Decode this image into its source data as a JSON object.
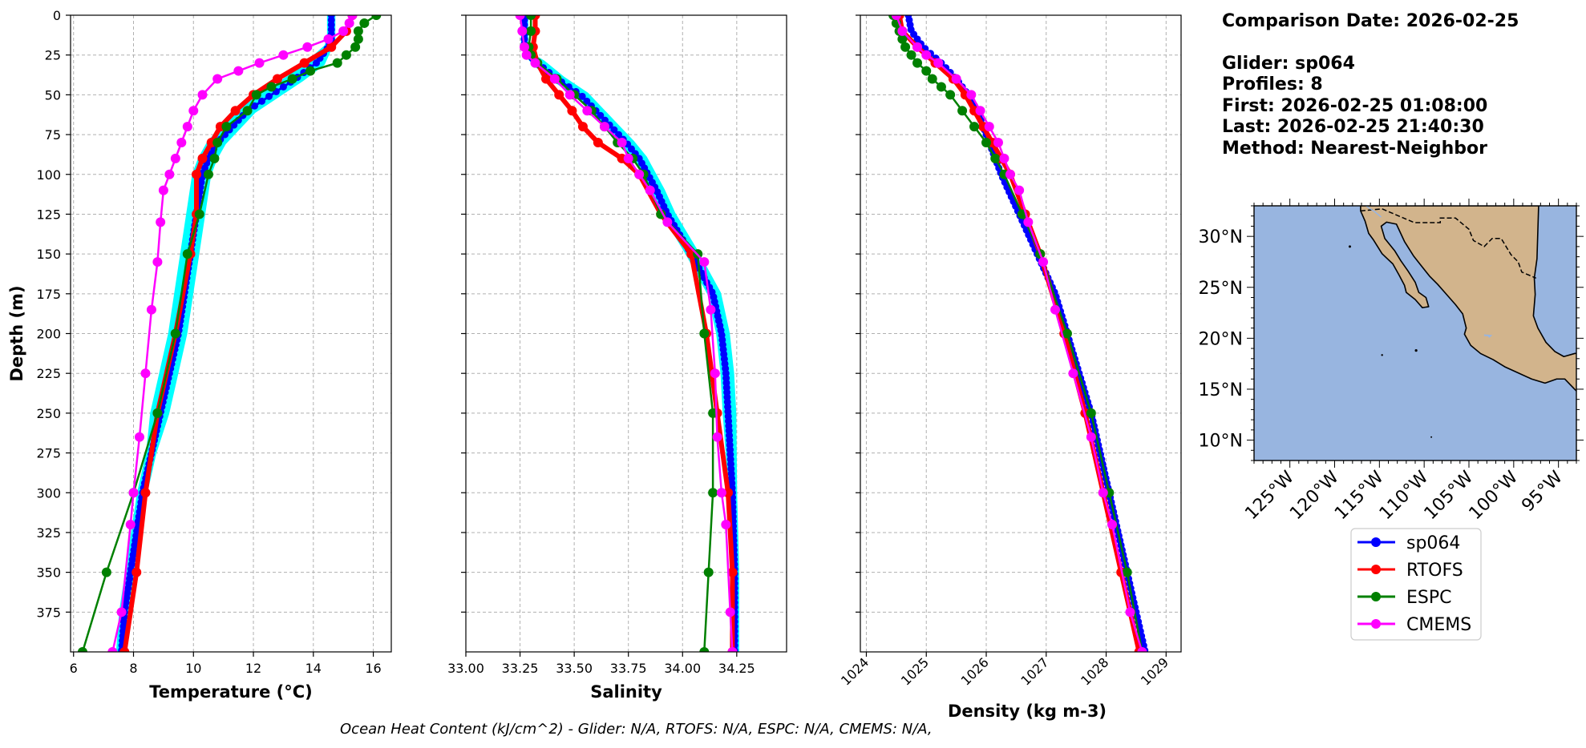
{
  "info": {
    "comparison_date": "Comparison Date: 2026-02-25",
    "glider": "Glider: sp064",
    "profiles": "Profiles: 8",
    "first": "First: 2026-02-25 01:08:00",
    "last": "Last: 2026-02-25 21:40:30",
    "method": "Method: Nearest-Neighbor"
  },
  "footer": "Ocean Heat Content (kJ/cm^2) - Glider: N/A,  RTOFS: N/A,  ESPC: N/A,  CMEMS: N/A,",
  "colors": {
    "sp064": "#0000ff",
    "RTOFS": "#ff0000",
    "ESPC": "#008000",
    "CMEMS": "#ff00ff",
    "sp064_spread": "#00ffff",
    "ocean": "#98b5e0",
    "land": "#d2b48c"
  },
  "legend": [
    "sp064",
    "RTOFS",
    "ESPC",
    "CMEMS"
  ],
  "chart_data": [
    {
      "type": "line",
      "xlabel": "Temperature (°C)",
      "ylabel": "Depth (m)",
      "xlim": [
        5.9,
        16.6
      ],
      "ylim": [
        400,
        0
      ],
      "xticks": [
        6,
        8,
        10,
        12,
        14,
        16
      ],
      "yticks": [
        0,
        25,
        50,
        75,
        100,
        125,
        150,
        175,
        200,
        225,
        250,
        275,
        300,
        325,
        350,
        375
      ],
      "grid": true,
      "series": [
        {
          "name": "sp064",
          "depth": [
            0,
            5,
            10,
            15,
            20,
            30,
            40,
            50,
            60,
            70,
            80,
            90,
            100,
            125,
            150,
            175,
            200,
            225,
            250,
            275,
            300,
            325,
            350,
            375,
            400
          ],
          "values": [
            14.6,
            14.6,
            14.6,
            14.6,
            14.5,
            14.1,
            13.4,
            12.6,
            11.8,
            11.3,
            10.8,
            10.5,
            10.3,
            10.1,
            9.9,
            9.7,
            9.5,
            9.2,
            8.9,
            8.6,
            8.3,
            8.1,
            7.9,
            7.7,
            7.6
          ]
        },
        {
          "name": "RTOFS",
          "depth": [
            0,
            10,
            20,
            30,
            40,
            50,
            60,
            70,
            80,
            90,
            100,
            125,
            150,
            200,
            250,
            300,
            350,
            400
          ],
          "values": [
            15.3,
            15.1,
            14.6,
            13.7,
            12.8,
            12.0,
            11.4,
            10.9,
            10.6,
            10.3,
            10.1,
            10.1,
            9.9,
            9.4,
            8.8,
            8.4,
            8.1,
            7.7
          ]
        },
        {
          "name": "ESPC",
          "depth": [
            0,
            5,
            10,
            15,
            20,
            25,
            30,
            35,
            40,
            45,
            50,
            60,
            70,
            80,
            90,
            100,
            125,
            150,
            200,
            250,
            300,
            350,
            400
          ],
          "values": [
            16.1,
            15.7,
            15.5,
            15.5,
            15.4,
            15.1,
            14.8,
            13.9,
            13.3,
            12.6,
            12.1,
            11.8,
            11.1,
            10.8,
            10.7,
            10.5,
            10.2,
            9.8,
            9.4,
            8.8,
            8.0,
            7.1,
            6.3
          ]
        },
        {
          "name": "CMEMS",
          "depth": [
            0,
            5,
            10,
            15,
            20,
            25,
            30,
            35,
            40,
            50,
            60,
            70,
            80,
            90,
            100,
            110,
            130,
            155,
            185,
            225,
            265,
            300,
            320,
            375,
            400
          ],
          "values": [
            15.3,
            15.2,
            15.0,
            14.5,
            13.8,
            13.0,
            12.2,
            11.5,
            10.8,
            10.3,
            10.0,
            9.8,
            9.6,
            9.4,
            9.2,
            9.0,
            8.9,
            8.8,
            8.6,
            8.4,
            8.2,
            8.0,
            7.9,
            7.6,
            7.3
          ]
        }
      ]
    },
    {
      "type": "line",
      "xlabel": "Salinity",
      "xlim": [
        33.0,
        34.48
      ],
      "ylim": [
        400,
        0
      ],
      "xticks": [
        33.0,
        33.25,
        33.5,
        33.75,
        34.0,
        34.25
      ],
      "grid": true,
      "series": [
        {
          "name": "sp064",
          "depth": [
            0,
            10,
            20,
            25,
            30,
            40,
            50,
            60,
            70,
            80,
            90,
            100,
            110,
            125,
            150,
            175,
            200,
            225,
            250,
            300,
            350,
            400
          ],
          "values": [
            33.27,
            33.27,
            33.27,
            33.29,
            33.33,
            33.42,
            33.53,
            33.6,
            33.67,
            33.74,
            33.8,
            33.84,
            33.88,
            33.93,
            34.04,
            34.14,
            34.18,
            34.2,
            34.21,
            34.23,
            34.24,
            34.24
          ]
        },
        {
          "name": "RTOFS",
          "depth": [
            0,
            10,
            20,
            30,
            40,
            50,
            60,
            70,
            80,
            90,
            100,
            125,
            150,
            200,
            250,
            300,
            350,
            400
          ],
          "values": [
            33.32,
            33.32,
            33.31,
            33.33,
            33.37,
            33.43,
            33.49,
            33.54,
            33.61,
            33.72,
            33.8,
            33.9,
            34.04,
            34.11,
            34.16,
            34.21,
            34.23,
            34.23
          ]
        },
        {
          "name": "ESPC",
          "depth": [
            0,
            10,
            20,
            25,
            30,
            40,
            50,
            60,
            70,
            80,
            90,
            100,
            125,
            150,
            200,
            250,
            300,
            350,
            400
          ],
          "values": [
            33.3,
            33.3,
            33.29,
            33.3,
            33.33,
            33.42,
            33.5,
            33.58,
            33.64,
            33.7,
            33.77,
            33.82,
            33.9,
            34.07,
            34.1,
            34.14,
            34.14,
            34.12,
            34.1
          ]
        },
        {
          "name": "CMEMS",
          "depth": [
            0,
            10,
            20,
            25,
            30,
            40,
            50,
            60,
            70,
            80,
            90,
            100,
            110,
            130,
            155,
            185,
            225,
            265,
            300,
            320,
            375,
            400
          ],
          "values": [
            33.25,
            33.26,
            33.27,
            33.28,
            33.32,
            33.41,
            33.48,
            33.56,
            33.64,
            33.72,
            33.75,
            33.8,
            33.85,
            33.93,
            34.1,
            34.13,
            34.15,
            34.16,
            34.18,
            34.2,
            34.22,
            34.23
          ]
        }
      ]
    },
    {
      "type": "line",
      "xlabel": "Density (kg m-3)",
      "xlim": [
        1023.9,
        1029.25
      ],
      "ylim": [
        400,
        0
      ],
      "xticks": [
        1024,
        1025,
        1026,
        1027,
        1028,
        1029
      ],
      "grid": true,
      "series": [
        {
          "name": "sp064",
          "depth": [
            0,
            10,
            20,
            30,
            40,
            50,
            60,
            70,
            80,
            90,
            100,
            125,
            150,
            175,
            200,
            250,
            300,
            350,
            400
          ],
          "values": [
            1024.7,
            1024.75,
            1024.95,
            1025.25,
            1025.5,
            1025.7,
            1025.85,
            1025.95,
            1026.05,
            1026.15,
            1026.25,
            1026.55,
            1026.85,
            1027.15,
            1027.35,
            1027.75,
            1028.05,
            1028.35,
            1028.65
          ]
        },
        {
          "name": "RTOFS",
          "depth": [
            0,
            10,
            20,
            30,
            40,
            50,
            60,
            70,
            80,
            90,
            100,
            125,
            150,
            200,
            250,
            300,
            350,
            400
          ],
          "values": [
            1024.55,
            1024.6,
            1024.85,
            1025.15,
            1025.45,
            1025.65,
            1025.8,
            1025.95,
            1026.1,
            1026.25,
            1026.4,
            1026.65,
            1026.9,
            1027.3,
            1027.65,
            1027.95,
            1028.25,
            1028.55
          ]
        },
        {
          "name": "ESPC",
          "depth": [
            0,
            5,
            10,
            15,
            20,
            25,
            30,
            35,
            40,
            45,
            50,
            60,
            70,
            80,
            90,
            100,
            125,
            150,
            200,
            250,
            300,
            350,
            400
          ],
          "values": [
            1024.45,
            1024.5,
            1024.55,
            1024.6,
            1024.65,
            1024.75,
            1024.85,
            1025.0,
            1025.1,
            1025.25,
            1025.4,
            1025.6,
            1025.8,
            1026.0,
            1026.15,
            1026.3,
            1026.6,
            1026.9,
            1027.35,
            1027.75,
            1028.05,
            1028.35,
            1028.6
          ]
        },
        {
          "name": "CMEMS",
          "depth": [
            0,
            10,
            20,
            25,
            30,
            40,
            50,
            60,
            70,
            80,
            90,
            100,
            110,
            130,
            155,
            185,
            225,
            265,
            300,
            320,
            375,
            400
          ],
          "values": [
            1024.5,
            1024.6,
            1024.85,
            1025.0,
            1025.2,
            1025.5,
            1025.75,
            1025.9,
            1026.05,
            1026.2,
            1026.3,
            1026.4,
            1026.55,
            1026.7,
            1026.95,
            1027.15,
            1027.45,
            1027.75,
            1027.95,
            1028.1,
            1028.4,
            1028.6
          ]
        }
      ]
    }
  ],
  "map": {
    "lon_range": [
      -129,
      -93
    ],
    "lat_range": [
      8,
      33
    ],
    "lat_ticks": [
      30,
      25,
      20,
      15,
      10
    ],
    "lat_tick_labels": [
      "30°N",
      "25°N",
      "20°N",
      "15°N",
      "10°N"
    ],
    "lon_ticks": [
      -125,
      -120,
      -115,
      -110,
      -105,
      -100,
      -95
    ],
    "lon_tick_labels": [
      "125°W",
      "120°W",
      "115°W",
      "110°W",
      "105°W",
      "100°W",
      "95°W"
    ]
  }
}
